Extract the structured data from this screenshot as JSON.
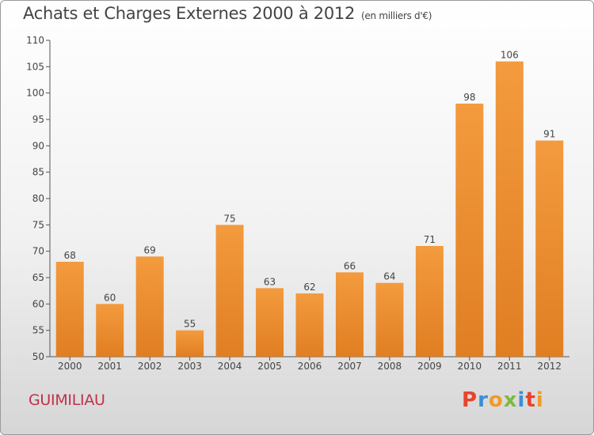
{
  "header": {
    "title": "Achats et Charges Externes 2000 à 2012",
    "subtitle": "(en milliers d'€)"
  },
  "footer": {
    "commune": "GUIMILIAU",
    "brand": "Proxiti"
  },
  "colors": {
    "bar": "#f39b3e",
    "bar_dark": "#e07e22",
    "axis": "#555555",
    "brand_letters": [
      "#e8432b",
      "#3b8fd6",
      "#f29a26",
      "#7dba3c",
      "#3b8fd6",
      "#e8432b",
      "#f29a26"
    ]
  },
  "chart_data": {
    "type": "bar",
    "title": "Achats et Charges Externes 2000 à 2012",
    "subtitle": "(en milliers d'€)",
    "xlabel": "",
    "ylabel": "",
    "categories": [
      "2000",
      "2001",
      "2002",
      "2003",
      "2004",
      "2005",
      "2006",
      "2007",
      "2008",
      "2009",
      "2010",
      "2011",
      "2012"
    ],
    "values": [
      68,
      60,
      69,
      55,
      75,
      63,
      62,
      66,
      64,
      71,
      98,
      106,
      91
    ],
    "ylim": [
      50,
      110
    ],
    "yticks": [
      50,
      55,
      60,
      65,
      70,
      75,
      80,
      85,
      90,
      95,
      100,
      105,
      110
    ],
    "grid": false,
    "legend": "none"
  }
}
